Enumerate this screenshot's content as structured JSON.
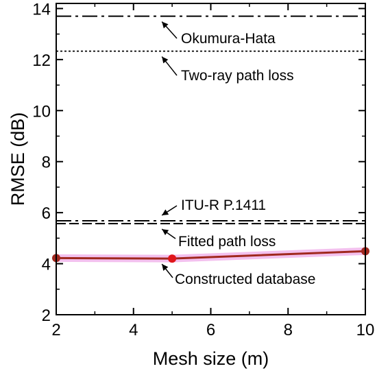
{
  "chart_data": {
    "type": "line",
    "xlabel": "Mesh size (m)",
    "ylabel": "RMSE (dB)",
    "xlim": [
      2,
      10
    ],
    "ylim": [
      2,
      14.2
    ],
    "xticks": [
      "2",
      "4",
      "6",
      "8",
      "10"
    ],
    "yticks": [
      "2",
      "4",
      "6",
      "8",
      "10",
      "12",
      "14"
    ],
    "grid": false,
    "series": [
      {
        "name": "Constructed database",
        "x": [
          2,
          5,
          10
        ],
        "y": [
          4.22,
          4.2,
          4.49
        ],
        "line_color": "#a0281e",
        "highlight_color": "#f3c0ee",
        "marker_colors": [
          "#a0281e",
          "#e0161b",
          "#a0281e"
        ]
      }
    ],
    "reference_lines": [
      {
        "name": "Okumura-Hata",
        "y": 13.7,
        "style": "dash-dot"
      },
      {
        "name": "Two-ray path loss",
        "y": 12.33,
        "style": "dotted"
      },
      {
        "name": "ITU-R P.1411",
        "y": 5.68,
        "style": "dash-dot"
      },
      {
        "name": "Fitted path loss",
        "y": 5.57,
        "style": "dashed"
      }
    ],
    "annotations": [
      {
        "text": "Okumura-Hata",
        "target": [
          4.7,
          13.7
        ]
      },
      {
        "text": "Two-ray path loss",
        "target": [
          4.7,
          12.33
        ]
      },
      {
        "text": "ITU-R P.1411",
        "target": [
          4.7,
          5.68
        ]
      },
      {
        "text": "Fitted path loss",
        "target": [
          4.7,
          5.57
        ]
      },
      {
        "text": "Constructed database",
        "target": [
          4.7,
          4.2
        ]
      }
    ]
  }
}
